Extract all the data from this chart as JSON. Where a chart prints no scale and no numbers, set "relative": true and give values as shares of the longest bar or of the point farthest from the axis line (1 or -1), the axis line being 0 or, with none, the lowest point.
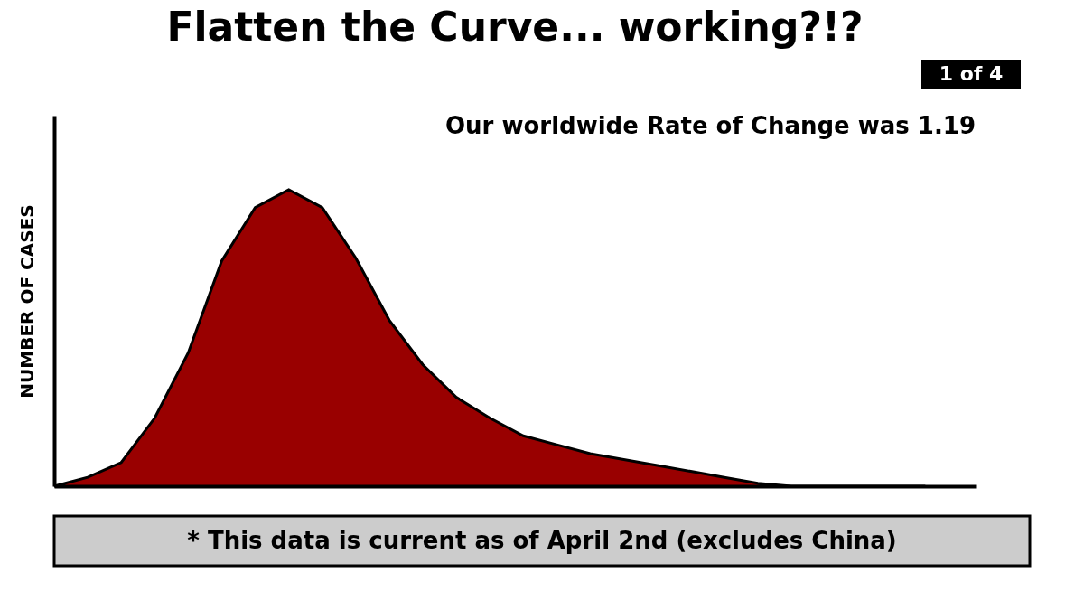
{
  "chart_data": {
    "type": "area",
    "relative": true,
    "title": "Flatten the Curve... working?!?",
    "subtitle": "Our worldwide Rate of Change was 1.19",
    "ylabel": "NUMBER OF CASES",
    "annotations": [
      "1 of 4",
      "* This data is current as of April 2nd (excludes China)"
    ],
    "categories": [
      null,
      null,
      null,
      null,
      null,
      null,
      null,
      null,
      null,
      null,
      null,
      null,
      null,
      null,
      null,
      null,
      null,
      null,
      null,
      null,
      null,
      null,
      null,
      null,
      null,
      null,
      null
    ],
    "color": "#990000",
    "values": [
      0,
      0.03,
      0.08,
      0.23,
      0.45,
      0.76,
      0.94,
      1.0,
      0.94,
      0.77,
      0.56,
      0.41,
      0.3,
      0.23,
      0.17,
      0.14,
      0.11,
      0.09,
      0.07,
      0.05,
      0.03,
      0.01,
      0,
      0,
      0,
      0,
      0
    ]
  }
}
